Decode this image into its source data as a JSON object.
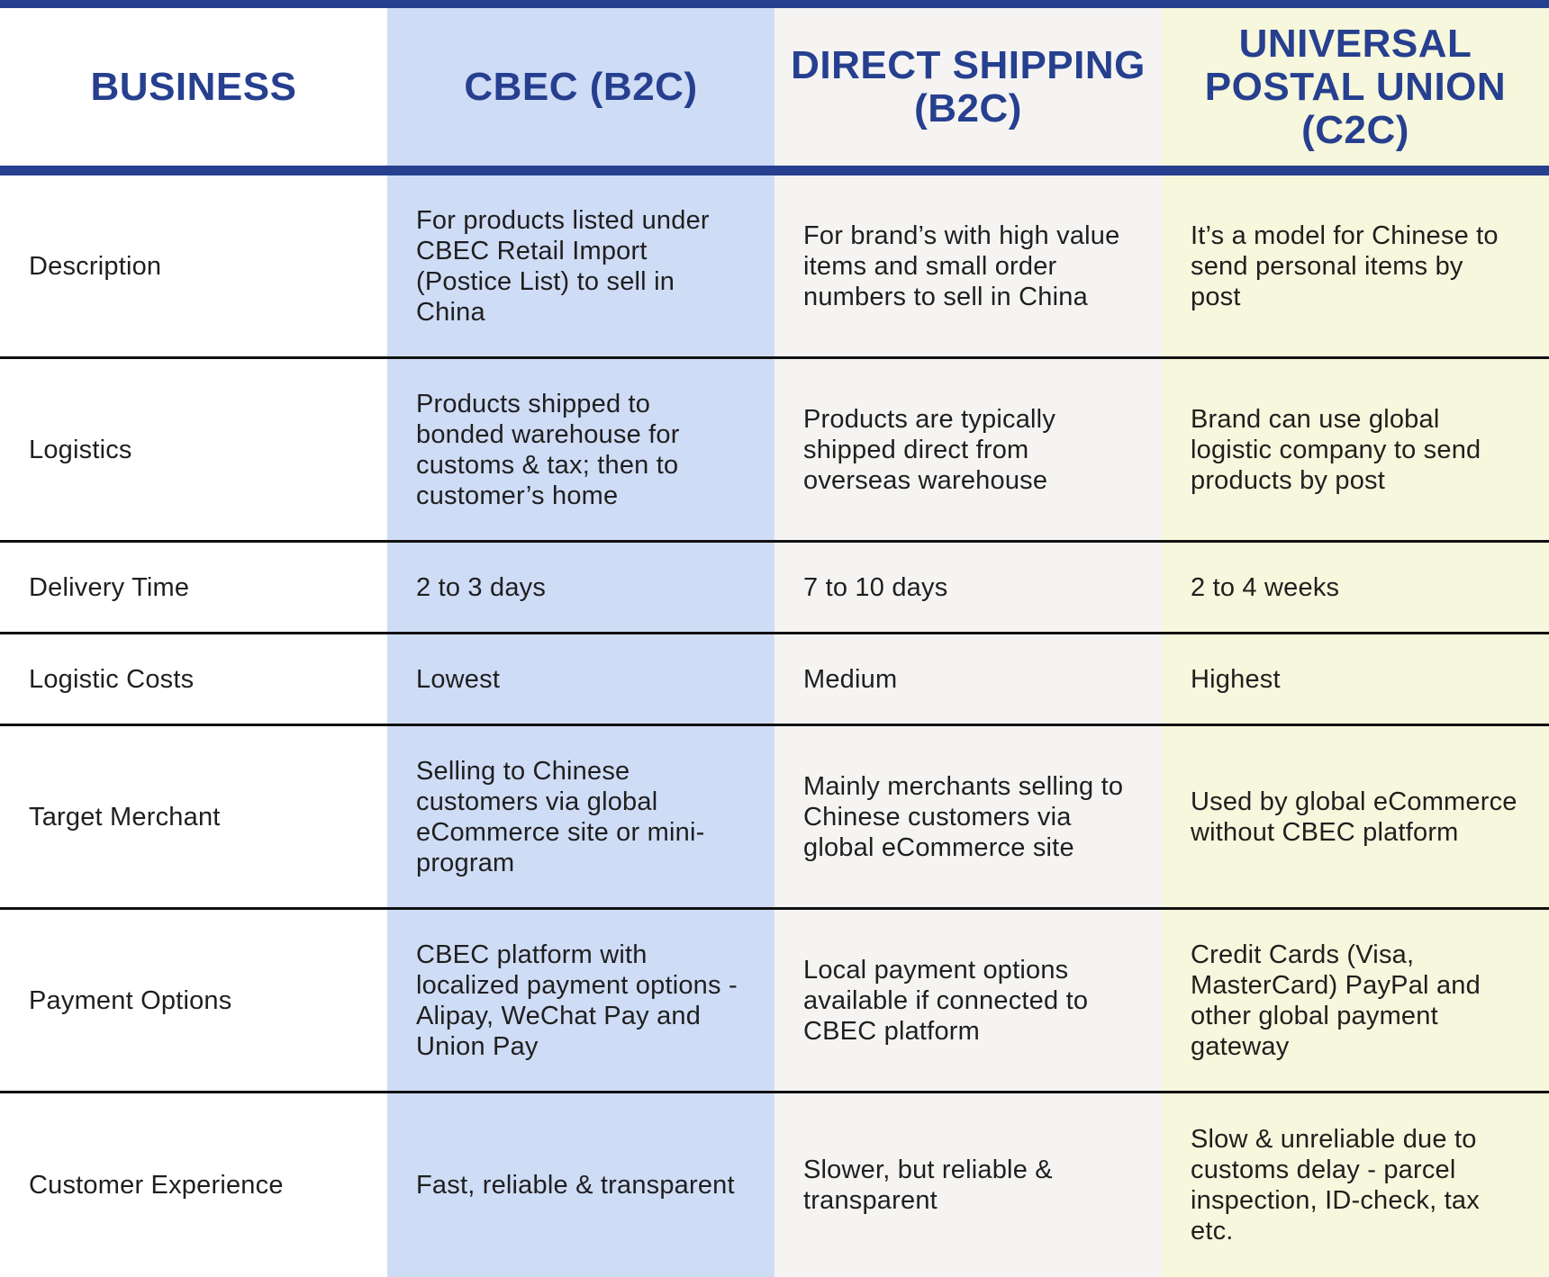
{
  "header": {
    "business": "BUSINESS",
    "cbec": "CBEC (B2C)",
    "direct": "DIRECT SHIPPING (B2C)",
    "upu": "UNIVERSAL POSTAL UNION (C2C)"
  },
  "rows": [
    {
      "label": "Description",
      "cbec": "For products listed under CBEC Retail Import (Postice List) to sell in China",
      "direct": "For brand’s with high value items and small order numbers to sell in China",
      "upu": "It’s a model for Chinese to send personal items by post"
    },
    {
      "label": "Logistics",
      "cbec": "Products shipped to bonded warehouse for customs & tax; then to customer’s home",
      "direct": "Products are typically shipped direct from overseas warehouse",
      "upu": "Brand can use global logistic company to send products by post"
    },
    {
      "label": "Delivery Time",
      "cbec": "2 to 3 days",
      "direct": "7 to 10 days",
      "upu": "2 to 4 weeks"
    },
    {
      "label": "Logistic Costs",
      "cbec": "Lowest",
      "direct": "Medium",
      "upu": "Highest"
    },
    {
      "label": "Target Merchant",
      "cbec": "Selling to Chinese customers via global eCommerce site or mini-program",
      "direct": "Mainly merchants selling to Chinese customers via global eCommerce site",
      "upu": "Used by global eCommerce without CBEC platform"
    },
    {
      "label": "Payment Options",
      "cbec": "CBEC platform with localized payment options - Alipay, WeChat Pay and Union Pay",
      "direct": "Local payment options available if connected to CBEC platform",
      "upu": "Credit Cards (Visa, MasterCard) PayPal and other global payment gateway"
    },
    {
      "label": "Customer Experience",
      "cbec": "Fast, reliable & transparent",
      "direct": "Slower, but reliable & transparent",
      "upu": "Slow & unreliable due to customs delay - parcel inspection, ID-check, tax etc."
    }
  ]
}
